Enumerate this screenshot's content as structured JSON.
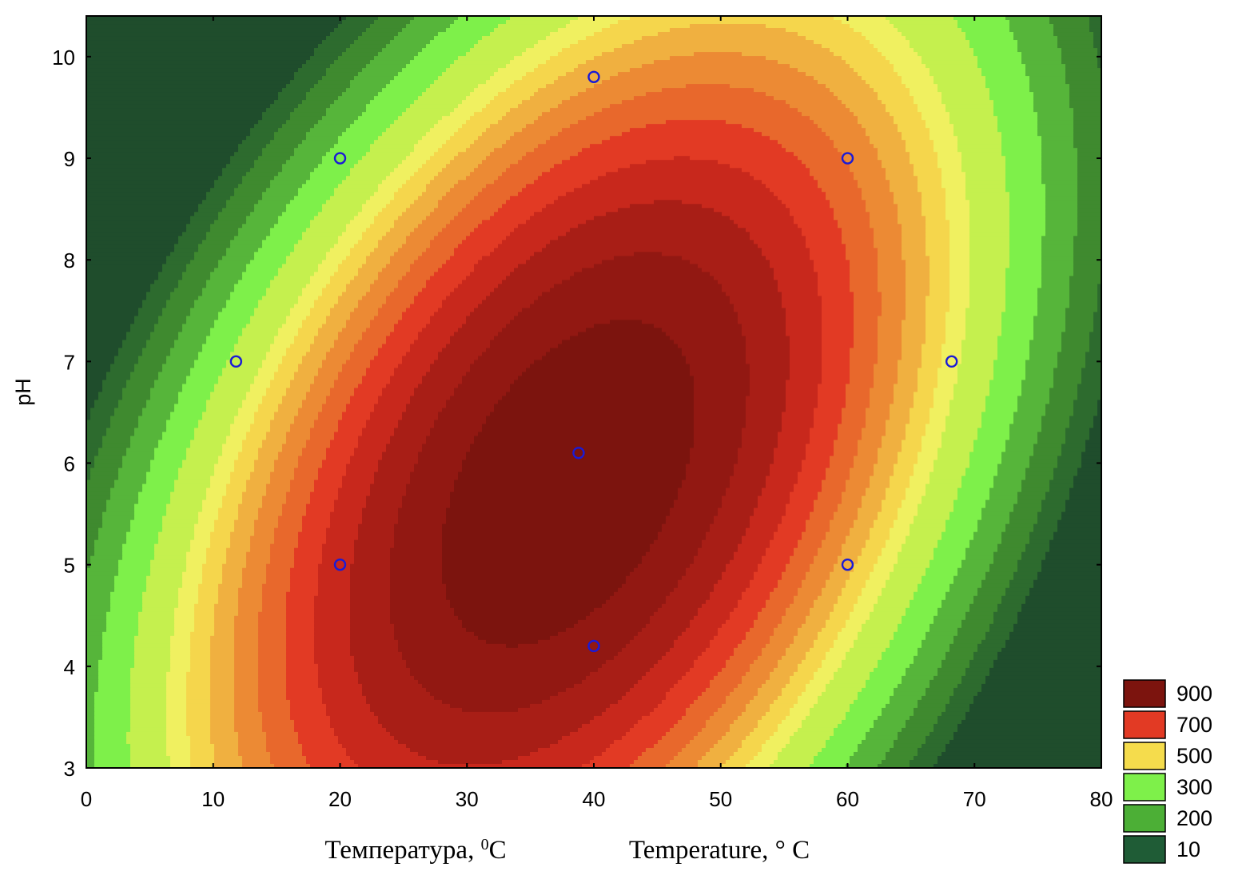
{
  "chart_data": {
    "type": "contour",
    "title": "",
    "xlabel_ru": "Температура, ",
    "xlabel_ru_sup": "0",
    "xlabel_ru_unit": "C",
    "xlabel_en": "Temperature, ° C",
    "ylabel": "pH",
    "xlim": [
      0,
      80
    ],
    "ylim": [
      3,
      10.4
    ],
    "xticks": [
      0,
      10,
      20,
      30,
      40,
      50,
      60,
      70,
      80
    ],
    "yticks": [
      3,
      4,
      5,
      6,
      7,
      8,
      9,
      10
    ],
    "grid": false,
    "legend_position": "bottom-right",
    "surface": {
      "peak": {
        "x": 38,
        "y": 5.8,
        "value": 1000
      },
      "x_spread": 40,
      "y_spread": 6.4,
      "interaction": -0.45
    },
    "levels": [
      0,
      10,
      100,
      200,
      300,
      400,
      500,
      550,
      600,
      650,
      700,
      750,
      800,
      850,
      900,
      950
    ],
    "level_colors": [
      "#1f4d2c",
      "#2d6b2e",
      "#3f8a2f",
      "#56b53a",
      "#7ef04a",
      "#c5f04e",
      "#f0f060",
      "#f5d64c",
      "#f0b040",
      "#ec8a34",
      "#e8682c",
      "#e23a24",
      "#c8281c",
      "#a81e16",
      "#921812",
      "#7c140e"
    ],
    "legend": [
      {
        "label": "900",
        "color": "#7c140e"
      },
      {
        "label": "700",
        "color": "#e23a24"
      },
      {
        "label": "500",
        "color": "#f5dc4c"
      },
      {
        "label": "300",
        "color": "#7ef04a"
      },
      {
        "label": "200",
        "color": "#4caf36"
      },
      {
        "label": "10",
        "color": "#1f5c36"
      }
    ],
    "points": [
      {
        "x": 40,
        "y": 9.8
      },
      {
        "x": 20,
        "y": 9
      },
      {
        "x": 60,
        "y": 9
      },
      {
        "x": 11.8,
        "y": 7
      },
      {
        "x": 68.2,
        "y": 7
      },
      {
        "x": 38.8,
        "y": 6.1
      },
      {
        "x": 20,
        "y": 5
      },
      {
        "x": 60,
        "y": 5
      },
      {
        "x": 40,
        "y": 4.2
      }
    ],
    "point_color": "#1a1ad6"
  }
}
